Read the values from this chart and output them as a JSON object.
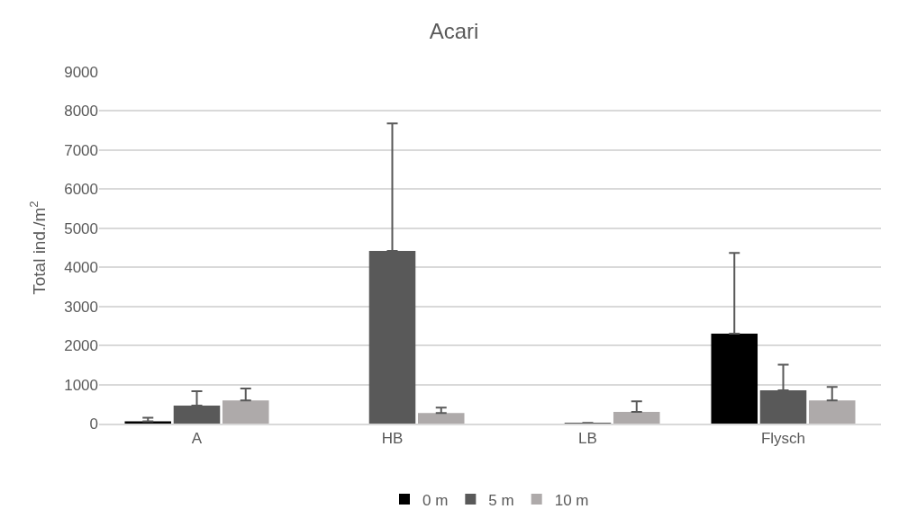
{
  "chart_data": {
    "type": "bar",
    "title": "Acari",
    "ylabel": "Total ind./m$^{2}$",
    "categories": [
      "A",
      "HB",
      "LB",
      "Flysch"
    ],
    "series": [
      {
        "name": "0 m",
        "color": "#000000",
        "values": [
          60,
          null,
          null,
          2300
        ],
        "errors": [
          [
            60,
            150
          ],
          null,
          null,
          [
            2300,
            4370
          ]
        ]
      },
      {
        "name": "5 m",
        "color": "#595959",
        "values": [
          460,
          4420,
          20,
          850
        ],
        "errors": [
          [
            460,
            830
          ],
          [
            4420,
            7680
          ],
          null,
          [
            850,
            1510
          ]
        ]
      },
      {
        "name": "10 m",
        "color": "#aeaaaa",
        "values": [
          590,
          270,
          300,
          590
        ],
        "errors": [
          [
            590,
            900
          ],
          [
            270,
            410
          ],
          [
            300,
            570
          ],
          [
            590,
            940
          ]
        ]
      }
    ],
    "ylim": [
      0,
      9000
    ],
    "yticks": [
      0,
      1000,
      2000,
      3000,
      4000,
      5000,
      6000,
      7000,
      8000,
      9000
    ],
    "grid": "y",
    "legend": "bottom"
  }
}
